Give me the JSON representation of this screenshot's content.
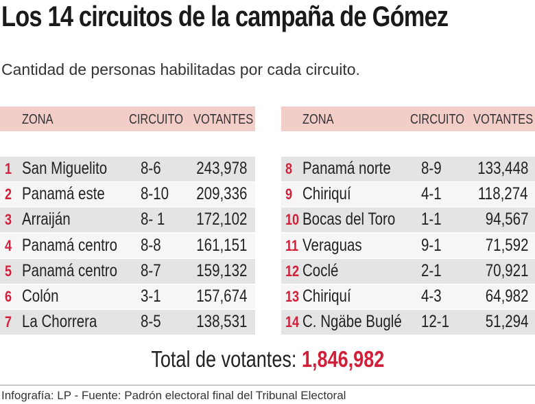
{
  "title": "Los 14 circuitos  de la campaña de Gómez",
  "subtitle": "Cantidad de personas habilitadas por cada circuito.",
  "tables": [
    {
      "headers": [
        "ZONA",
        "CIRCUITO",
        "VOTANTES"
      ],
      "rows": [
        [
          "1",
          "San Miguelito",
          "8-6",
          "243,978"
        ],
        [
          "2",
          "Panamá este",
          "8-10",
          "209,336"
        ],
        [
          "3",
          "Arraiján",
          "8- 1",
          "172,102"
        ],
        [
          "4",
          "Panamá centro",
          "8-8",
          "161,151"
        ],
        [
          "5",
          "Panamá centro",
          "8-7",
          "159,132"
        ],
        [
          "6",
          "Colón",
          "3-1",
          "157,674"
        ],
        [
          "7",
          "La Chorrera",
          "8-5",
          "138,531"
        ]
      ]
    },
    {
      "headers": [
        "ZONA",
        "CIRCUITO",
        "VOTANTES"
      ],
      "rows": [
        [
          "8",
          "Panamá norte",
          "8-9",
          "133,448"
        ],
        [
          "9",
          "Chiriquí",
          "4-1",
          "118,274"
        ],
        [
          "10",
          "Bocas del Toro",
          "1-1",
          "94,567"
        ],
        [
          "11",
          "Veraguas",
          "9-1",
          "71,592"
        ],
        [
          "12",
          "Coclé",
          "2-1",
          "70,921"
        ],
        [
          "13",
          "Chiriquí",
          "4-3",
          "64,982"
        ],
        [
          "14",
          "C. Ngäbe Buglé",
          "12-1",
          "51,294"
        ]
      ]
    }
  ],
  "total": {
    "label": "Total de votantes:",
    "value": "1,846,982"
  },
  "footer": "Infografía: LP - Fuente: Padrón electoral final del Tribunal Electoral"
}
